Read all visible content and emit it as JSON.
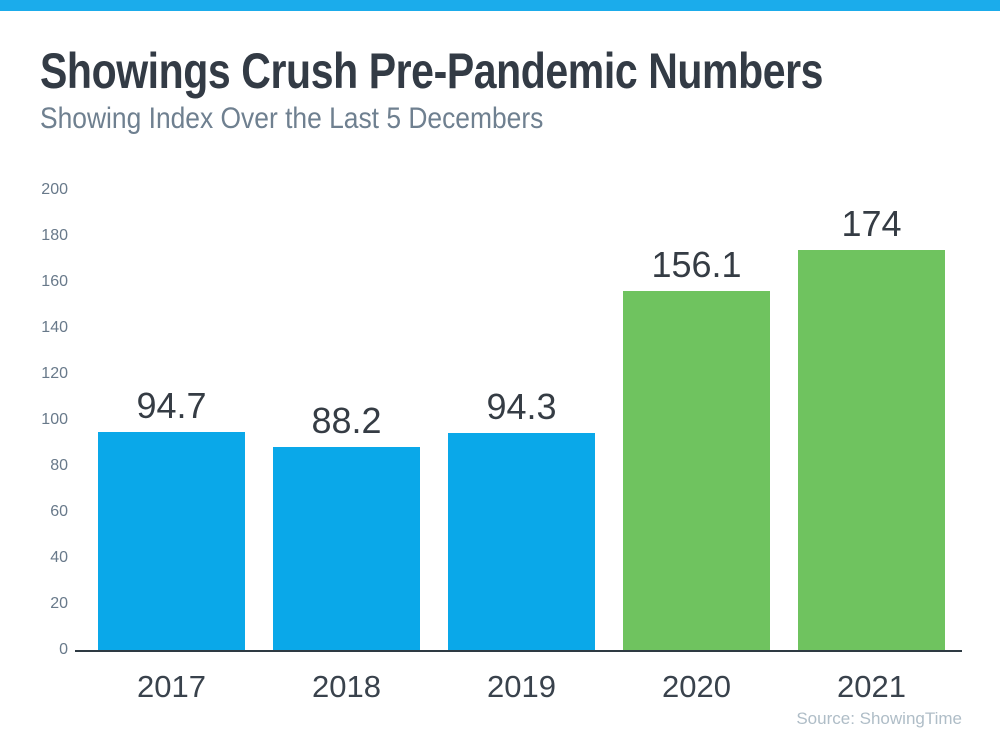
{
  "accent": {
    "topbar_color": "#1baceb"
  },
  "header": {
    "title": "Showings Crush Pre-Pandemic Numbers",
    "subtitle": "Showing Index Over the Last 5 Decembers"
  },
  "footer": {
    "source": "Source: ShowingTime"
  },
  "chart_data": {
    "type": "bar",
    "title": "Showings Crush Pre-Pandemic Numbers",
    "subtitle": "Showing Index Over the Last 5 Decembers",
    "categories": [
      "2017",
      "2018",
      "2019",
      "2020",
      "2021"
    ],
    "values": [
      94.7,
      88.2,
      94.3,
      156.1,
      174
    ],
    "value_labels": [
      "94.7",
      "88.2",
      "94.3",
      "156.1",
      "174"
    ],
    "bar_colors": [
      "#0aa8e9",
      "#0aa8e9",
      "#0aa8e9",
      "#6fc35f",
      "#6fc35f"
    ],
    "blue_bar_color": "#0aa8e9",
    "green_bar_color": "#6fc35f",
    "xlabel": "",
    "ylabel": "",
    "ylim": [
      0,
      200
    ],
    "ytick_step": 20,
    "ytick_labels": [
      "0",
      "20",
      "40",
      "60",
      "80",
      "100",
      "120",
      "140",
      "160",
      "180",
      "200"
    ],
    "grid": false,
    "legend": false,
    "source": "Source: ShowingTime"
  }
}
